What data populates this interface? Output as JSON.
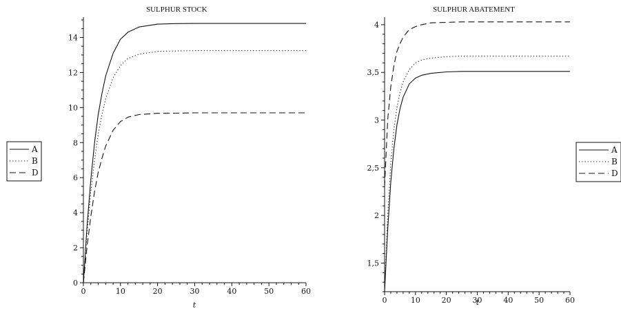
{
  "chart_data": [
    {
      "type": "line",
      "title": "SULPHUR STOCK",
      "xlabel": "t",
      "ylabel": "",
      "xlim": [
        0,
        60
      ],
      "ylim": [
        0,
        15
      ],
      "xticks": [
        0,
        10,
        20,
        30,
        40,
        50,
        60
      ],
      "yticks": [
        0,
        2,
        4,
        6,
        8,
        10,
        12,
        14
      ],
      "ytick_labels": [
        "0",
        "2",
        "4",
        "6",
        "8",
        "10",
        "12",
        "14"
      ],
      "legend_position": "left",
      "series": [
        {
          "name": "A",
          "style": "solid",
          "x": [
            0,
            1,
            2,
            3,
            4,
            5,
            6,
            8,
            10,
            12,
            15,
            20,
            25,
            30,
            40,
            50,
            60
          ],
          "y": [
            0,
            3.3,
            5.9,
            8.0,
            9.6,
            10.8,
            11.8,
            13.1,
            13.9,
            14.3,
            14.6,
            14.76,
            14.79,
            14.8,
            14.8,
            14.8,
            14.8
          ]
        },
        {
          "name": "B",
          "style": "dotted",
          "x": [
            0,
            1,
            2,
            3,
            4,
            5,
            6,
            8,
            10,
            12,
            15,
            20,
            25,
            30,
            40,
            50,
            60
          ],
          "y": [
            0,
            2.9,
            5.2,
            7.0,
            8.5,
            9.6,
            10.5,
            11.7,
            12.4,
            12.8,
            13.05,
            13.2,
            13.23,
            13.25,
            13.25,
            13.25,
            13.25
          ]
        },
        {
          "name": "D",
          "style": "dashed",
          "x": [
            0,
            1,
            2,
            3,
            4,
            5,
            6,
            8,
            10,
            12,
            15,
            20,
            25,
            30,
            40,
            50,
            60
          ],
          "y": [
            0,
            2.1,
            3.8,
            5.2,
            6.3,
            7.1,
            7.8,
            8.7,
            9.2,
            9.45,
            9.6,
            9.67,
            9.68,
            9.7,
            9.7,
            9.7,
            9.7
          ]
        }
      ]
    },
    {
      "type": "line",
      "title": "SULPHUR ABATEMENT",
      "xlabel": "t",
      "ylabel": "",
      "xlim": [
        0,
        60
      ],
      "ylim": [
        1.2,
        4.05
      ],
      "xticks": [
        0,
        10,
        20,
        30,
        40,
        50,
        60
      ],
      "yticks": [
        1.5,
        2,
        2.5,
        3,
        3.5,
        4
      ],
      "ytick_labels": [
        "1,5",
        "2",
        "2,5",
        "3",
        "3,5",
        "4"
      ],
      "legend_position": "right",
      "series": [
        {
          "name": "A",
          "style": "solid",
          "x": [
            0,
            1,
            2,
            3,
            4,
            5,
            6,
            8,
            10,
            12,
            15,
            20,
            25,
            30,
            40,
            50,
            60
          ],
          "y": [
            1.2,
            1.85,
            2.35,
            2.7,
            2.95,
            3.12,
            3.24,
            3.38,
            3.44,
            3.47,
            3.49,
            3.505,
            3.51,
            3.51,
            3.51,
            3.51,
            3.51
          ]
        },
        {
          "name": "B",
          "style": "dotted",
          "x": [
            0,
            1,
            2,
            3,
            4,
            5,
            6,
            8,
            10,
            12,
            15,
            20,
            25,
            30,
            40,
            50,
            60
          ],
          "y": [
            1.2,
            2.0,
            2.55,
            2.9,
            3.13,
            3.29,
            3.4,
            3.53,
            3.6,
            3.63,
            3.65,
            3.665,
            3.67,
            3.67,
            3.67,
            3.67,
            3.67
          ]
        },
        {
          "name": "D",
          "style": "dashed",
          "x": [
            0,
            1,
            2,
            3,
            4,
            5,
            6,
            8,
            10,
            12,
            15,
            20,
            25,
            30,
            40,
            50,
            60
          ],
          "y": [
            2.3,
            3.0,
            3.35,
            3.57,
            3.72,
            3.8,
            3.87,
            3.95,
            3.98,
            4.0,
            4.02,
            4.025,
            4.03,
            4.03,
            4.03,
            4.03,
            4.03
          ]
        }
      ]
    }
  ]
}
